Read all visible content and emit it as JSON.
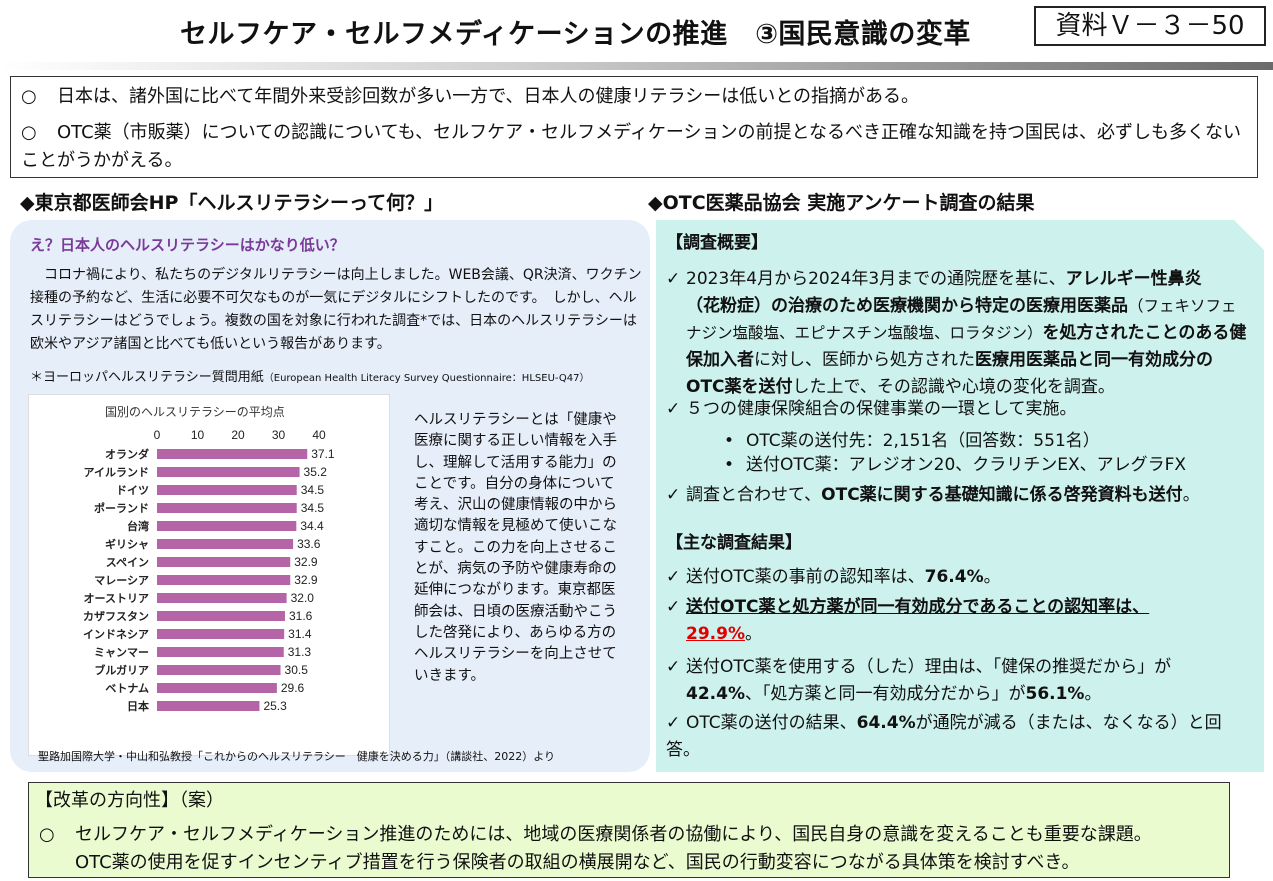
{
  "header": {
    "title": "セルフケア・セルフメディケーションの推進　③国民意識の変革",
    "doc_id": "資料Ｖ－３－50"
  },
  "intro": {
    "b1": "日本は、諸外国に比べて年間外来受診回数が多い一方で、日本人の健康リテラシーは低いとの指摘がある。",
    "b2": "OTC薬（市販薬）についての認識についても、セルフケア・セルフメディケーションの前提となるべき正確な知識を持つ国民は、必ずしも多くないことがうかがえる。",
    "bullet": "○"
  },
  "left": {
    "heading": "◆東京都医師会HP「ヘルスリテラシーって何？」",
    "question": "え？日本人のヘルスリテラシーはかなり低い？",
    "para": "　コロナ禍により、私たちのデジタルリテラシーは向上しました。WEB会議、QR決済、ワクチン接種の予約など、生活に必要不可欠なものが一気にデジタルにシフトしたのです。　しかし、ヘルスリテラシーはどうでしょう。複数の国を対象に行われた調査*では、日本のヘルスリテラシーは欧米やアジア諸国と比べても低いという報告があります。",
    "note_main": "＊ヨーロッパヘルスリテラシー質問用紙",
    "note_sub": "（European Health Literacy Survey Questionnaire：HLSEU-Q47）",
    "desc": "ヘルスリテラシーとは「健康や医療に関する正しい情報を入手し、理解して活用する能力」のことです。自分の身体について考え、沢山の健康情報の中から適切な情報を見極めて使いこなすこと。この力を向上させることが、病気の予防や健康寿命の延伸につながります。東京都医師会は、日頃の医療活動やこうした啓発により、あらゆる方のヘルスリテラシーを向上させていきます。",
    "source": "聖路加国際大学・中山和弘教授「これからのヘルスリテラシー　健康を決める力」（講談社、2022）より"
  },
  "chart_data": {
    "type": "bar",
    "orientation": "horizontal",
    "title": "国別のヘルスリテラシーの平均点",
    "categories": [
      "オランダ",
      "アイルランド",
      "ドイツ",
      "ポーランド",
      "台湾",
      "ギリシャ",
      "スペイン",
      "マレーシア",
      "オーストリア",
      "カザフスタン",
      "インドネシア",
      "ミャンマー",
      "ブルガリア",
      "ベトナム",
      "日本"
    ],
    "values": [
      37.1,
      35.2,
      34.5,
      34.5,
      34.4,
      33.6,
      32.9,
      32.9,
      32.0,
      31.6,
      31.4,
      31.3,
      30.5,
      29.6,
      25.3
    ],
    "value_labels": [
      "37.1",
      "35.2",
      "34.5",
      "34.5",
      "34.4",
      "33.6",
      "32.9",
      "32.9",
      "32.0",
      "31.6",
      "31.4",
      "31.3",
      "30.5",
      "29.6",
      "25.3"
    ],
    "ticks": [
      "0",
      "10",
      "20",
      "30",
      "40"
    ],
    "xlim": [
      0,
      40
    ],
    "bar_color": "#b565a7",
    "grid": false
  },
  "right": {
    "heading": "◆OTC医薬品協会 実施アンケート調査の結果",
    "overview_h": "【調査概要】",
    "check": "✓",
    "o1_a": "2023年4月から2024年3月までの通院歴を基に、",
    "o1_b": "アレルギー性鼻炎",
    "o1_c": "（花粉症）の治療のため医療機関から特定の医療用医薬品",
    "o1_d": "（フェキソフェナジン塩酸塩、エピナスチン塩酸塩、ロラタジン）",
    "o1_e": "を処方されたことのある健保加入者",
    "o1_f": "に対し、医師から処方された",
    "o1_g": "医療用医薬品と同一有効成分のOTC薬を送付",
    "o1_h": "した上で、その認識や心境の変化を調査。",
    "o2": "５つの健康保険組合の保健事業の一環として実施。",
    "o2_dot": "•",
    "o2_s1": "OTC薬の送付先：2,151名（回答数：551名）",
    "o2_s2": "送付OTC薬：アレジオン20、クラリチンEX、アレグラFX",
    "o3_a": "調査と合わせて、",
    "o3_b": "OTC薬に関する基礎知識に係る啓発資料も送付",
    "o3_c": "。",
    "results_h": "【主な調査結果】",
    "r1_a": "送付OTC薬の事前の認知率は、",
    "r1_b": "76.4%",
    "r1_c": "。",
    "r2_a": "送付OTC薬と処方薬が同一有効成分であることの認知率は、",
    "r2_b": "29.9%",
    "r2_c": "。",
    "r3_a": "送付OTC薬を使用する（した）理由は、「健保の推奨だから」が",
    "r3_b": "42.4%",
    "r3_c": "、「処方薬と同一有効成分だから」が",
    "r3_d": "56.1%",
    "r3_e": "。",
    "r4_a": "OTC薬の送付の結果、",
    "r4_b": "64.4%",
    "r4_c": "が通院が減る（または、なくなる）と回答。"
  },
  "bottom": {
    "heading": "【改革の方向性】（案）",
    "bullet": "○",
    "l1": "セルフケア・セルフメディケーション推進のためには、地域の医療関係者の協働により、国民自身の意識を変えることも重要な課題。",
    "l2": "OTC薬の使用を促すインセンティブ措置を行う保険者の取組の横展開など、国民の行動変容につながる具体策を検討すべき。"
  }
}
